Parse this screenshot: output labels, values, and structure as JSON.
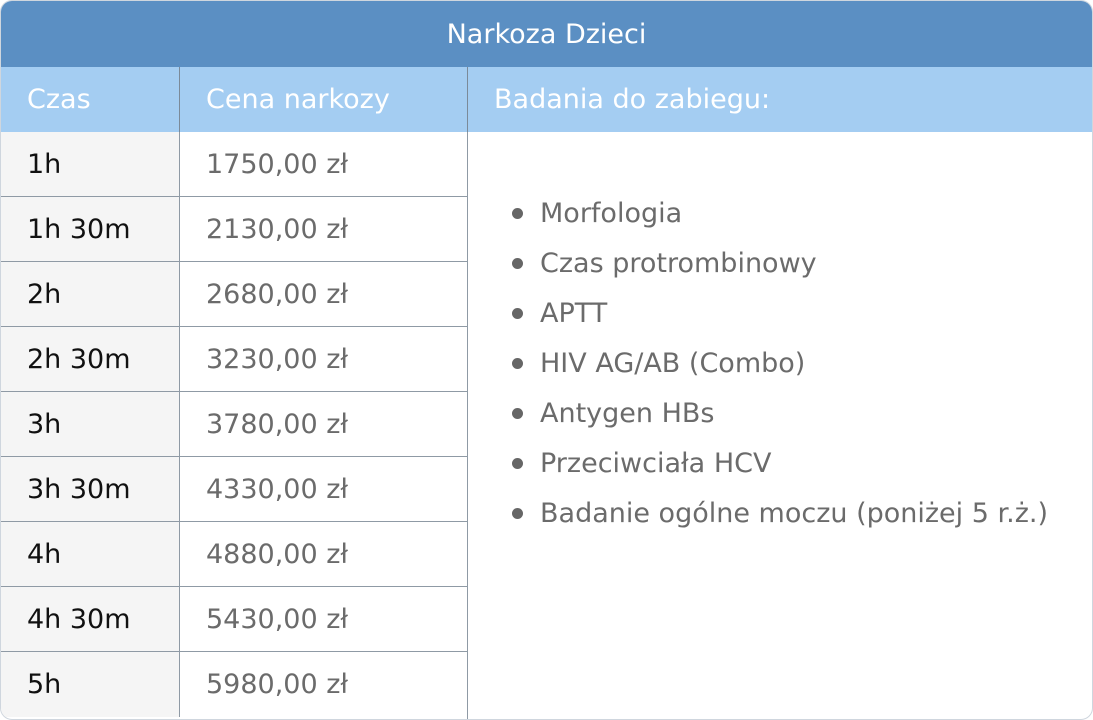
{
  "title": "Narkoza Dzieci",
  "headers": {
    "czas": "Czas",
    "cena": "Cena narkozy",
    "badania": "Badania do zabiegu:"
  },
  "rows": [
    {
      "czas": "1h",
      "cena": "1750,00 zł"
    },
    {
      "czas": "1h 30m",
      "cena": "2130,00 zł"
    },
    {
      "czas": "2h",
      "cena": "2680,00 zł"
    },
    {
      "czas": "2h 30m",
      "cena": "3230,00 zł"
    },
    {
      "czas": "3h",
      "cena": "3780,00 zł"
    },
    {
      "czas": "3h 30m",
      "cena": "4330,00 zł"
    },
    {
      "czas": "4h",
      "cena": "4880,00 zł"
    },
    {
      "czas": "4h 30m",
      "cena": "5430,00 zł"
    },
    {
      "czas": "5h",
      "cena": "5980,00 zł"
    }
  ],
  "badania": [
    "Morfologia",
    "Czas protrombinowy",
    "APTT",
    "HIV AG/AB (Combo)",
    "Antygen HBs",
    "Przeciwciała HCV",
    "Badanie ogólne moczu (poniżej 5 r.ż.)"
  ],
  "colors": {
    "title_bg": "#5b8fc3",
    "header_bg": "#a4cdf2",
    "first_col_bg": "#f5f5f5"
  },
  "icons": {
    "bullet": "bullet-dot-icon"
  }
}
